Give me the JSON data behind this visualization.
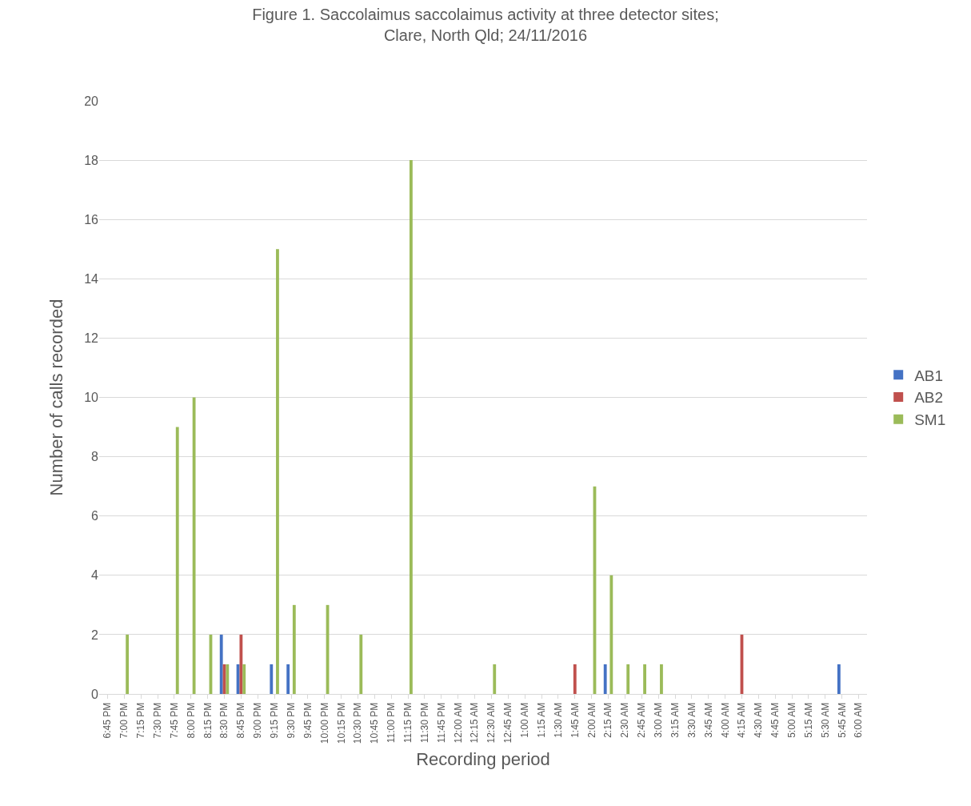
{
  "chart_data": {
    "type": "bar",
    "title": "Figure 1. Saccolaimus saccolaimus activity at three detector sites;\nClare, North Qld; 24/11/2016",
    "xlabel": "Recording period",
    "ylabel": "Number of calls recorded",
    "categories": [
      "6:45 PM",
      "7:00 PM",
      "7:15 PM",
      "7:30 PM",
      "7:45 PM",
      "8:00 PM",
      "8:15 PM",
      "8:30 PM",
      "8:45 PM",
      "9:00 PM",
      "9:15 PM",
      "9:30 PM",
      "9:45 PM",
      "10:00 PM",
      "10:15 PM",
      "10:30 PM",
      "10:45 PM",
      "11:00 PM",
      "11:15 PM",
      "11:30 PM",
      "11:45 PM",
      "12:00 AM",
      "12:15 AM",
      "12:30 AM",
      "12:45 AM",
      "1:00 AM",
      "1:15 AM",
      "1:30 AM",
      "1:45 AM",
      "2:00 AM",
      "2:15 AM",
      "2:30 AM",
      "2:45 AM",
      "3:00 AM",
      "3:15 AM",
      "3:30 AM",
      "3:45 AM",
      "4:00 AM",
      "4:15 AM",
      "4:30 AM",
      "4:45 AM",
      "5:00 AM",
      "5:15 AM",
      "5:30 AM",
      "5:45 AM",
      "6:00 AM"
    ],
    "series": [
      {
        "name": "AB1",
        "color": "#4472c4",
        "values": [
          0,
          0,
          0,
          0,
          0,
          0,
          0,
          2,
          1,
          0,
          1,
          1,
          0,
          0,
          0,
          0,
          0,
          0,
          0,
          0,
          0,
          0,
          0,
          0,
          0,
          0,
          0,
          0,
          0,
          0,
          1,
          0,
          0,
          0,
          0,
          0,
          0,
          0,
          0,
          0,
          0,
          0,
          0,
          0,
          1,
          0
        ]
      },
      {
        "name": "AB2",
        "color": "#c0504d",
        "values": [
          0,
          0,
          0,
          0,
          0,
          0,
          0,
          1,
          2,
          0,
          0,
          0,
          0,
          0,
          0,
          0,
          0,
          0,
          0,
          0,
          0,
          0,
          0,
          0,
          0,
          0,
          0,
          0,
          1,
          0,
          0,
          0,
          0,
          0,
          0,
          0,
          0,
          0,
          2,
          0,
          0,
          0,
          0,
          0,
          0,
          0
        ]
      },
      {
        "name": "SM1",
        "color": "#9bbb59",
        "values": [
          0,
          2,
          0,
          0,
          9,
          10,
          2,
          1,
          1,
          0,
          15,
          3,
          0,
          3,
          0,
          2,
          0,
          0,
          18,
          0,
          0,
          0,
          0,
          1,
          0,
          0,
          0,
          0,
          0,
          7,
          4,
          1,
          1,
          1,
          0,
          0,
          0,
          0,
          0,
          0,
          0,
          0,
          0,
          0,
          0,
          0
        ]
      }
    ],
    "ylim": [
      0,
      20
    ],
    "yticks": [
      0,
      2,
      4,
      6,
      8,
      10,
      12,
      14,
      16,
      18,
      20
    ],
    "grid": "y",
    "legend": "right"
  }
}
